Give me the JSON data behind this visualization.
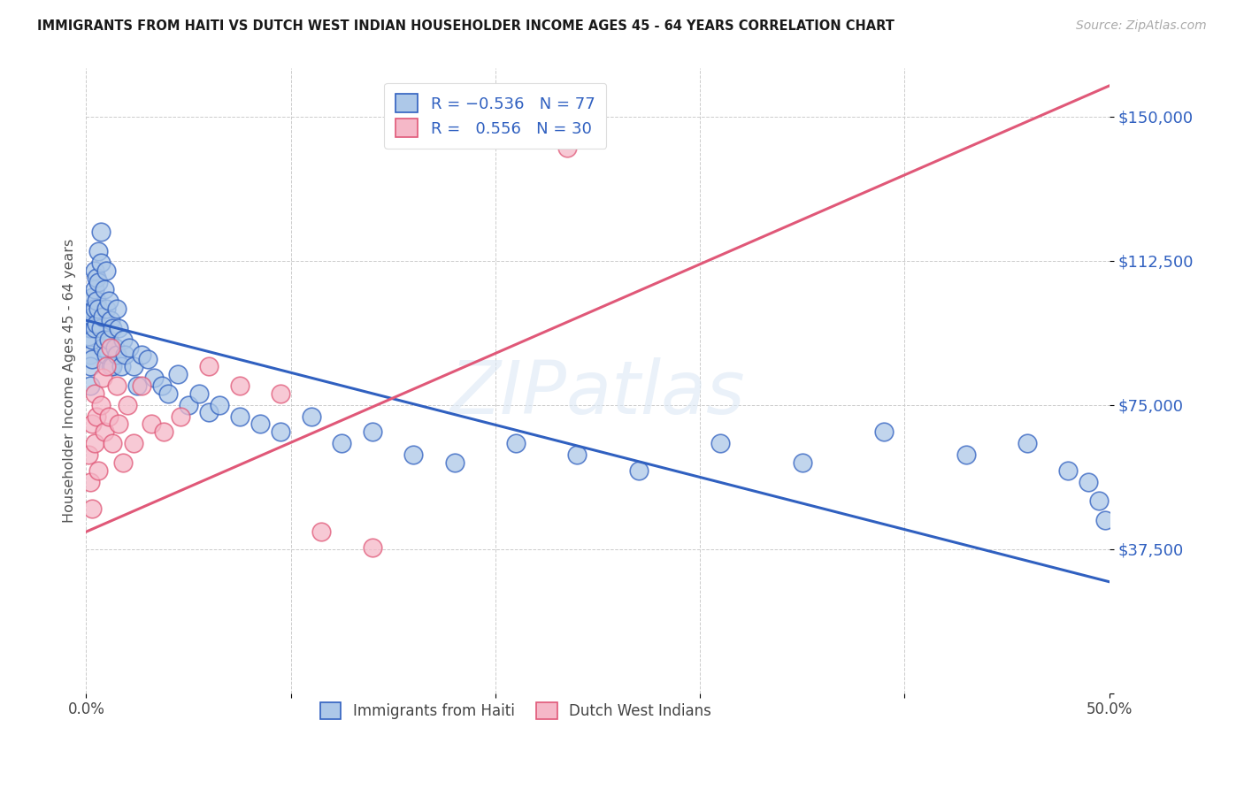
{
  "title": "IMMIGRANTS FROM HAITI VS DUTCH WEST INDIAN HOUSEHOLDER INCOME AGES 45 - 64 YEARS CORRELATION CHART",
  "source": "Source: ZipAtlas.com",
  "ylabel": "Householder Income Ages 45 - 64 years",
  "xlim": [
    0.0,
    0.5
  ],
  "ylim": [
    0,
    162500
  ],
  "yticks": [
    0,
    37500,
    75000,
    112500,
    150000
  ],
  "ytick_labels": [
    "",
    "$37,500",
    "$75,000",
    "$112,500",
    "$150,000"
  ],
  "xticks": [
    0.0,
    0.1,
    0.2,
    0.3,
    0.4,
    0.5
  ],
  "xtick_labels": [
    "0.0%",
    "",
    "",
    "",
    "",
    "50.0%"
  ],
  "haiti_color": "#adc8e8",
  "dwi_color": "#f5b8c8",
  "haiti_line_color": "#3060c0",
  "dwi_line_color": "#e05878",
  "background_color": "#ffffff",
  "watermark": "ZIPatlas",
  "haiti_x": [
    0.001,
    0.001,
    0.002,
    0.002,
    0.002,
    0.002,
    0.002,
    0.003,
    0.003,
    0.003,
    0.003,
    0.004,
    0.004,
    0.004,
    0.004,
    0.005,
    0.005,
    0.005,
    0.006,
    0.006,
    0.006,
    0.007,
    0.007,
    0.007,
    0.008,
    0.008,
    0.009,
    0.009,
    0.01,
    0.01,
    0.01,
    0.011,
    0.011,
    0.012,
    0.012,
    0.013,
    0.013,
    0.014,
    0.015,
    0.015,
    0.016,
    0.017,
    0.018,
    0.019,
    0.021,
    0.023,
    0.025,
    0.027,
    0.03,
    0.033,
    0.037,
    0.04,
    0.045,
    0.05,
    0.055,
    0.06,
    0.065,
    0.075,
    0.085,
    0.095,
    0.11,
    0.125,
    0.14,
    0.16,
    0.18,
    0.21,
    0.24,
    0.27,
    0.31,
    0.35,
    0.39,
    0.43,
    0.46,
    0.48,
    0.49,
    0.495,
    0.498
  ],
  "haiti_y": [
    97000,
    93000,
    100000,
    95000,
    88000,
    85000,
    80000,
    103000,
    98000,
    92000,
    87000,
    110000,
    105000,
    100000,
    95000,
    108000,
    102000,
    96000,
    115000,
    107000,
    100000,
    120000,
    112000,
    95000,
    98000,
    90000,
    105000,
    92000,
    110000,
    100000,
    88000,
    102000,
    92000,
    97000,
    85000,
    95000,
    85000,
    90000,
    100000,
    88000,
    95000,
    85000,
    92000,
    88000,
    90000,
    85000,
    80000,
    88000,
    87000,
    82000,
    80000,
    78000,
    83000,
    75000,
    78000,
    73000,
    75000,
    72000,
    70000,
    68000,
    72000,
    65000,
    68000,
    62000,
    60000,
    65000,
    62000,
    58000,
    65000,
    60000,
    68000,
    62000,
    65000,
    58000,
    55000,
    50000,
    45000
  ],
  "dwi_x": [
    0.001,
    0.002,
    0.003,
    0.003,
    0.004,
    0.004,
    0.005,
    0.006,
    0.007,
    0.008,
    0.009,
    0.01,
    0.011,
    0.012,
    0.013,
    0.015,
    0.016,
    0.018,
    0.02,
    0.023,
    0.027,
    0.032,
    0.038,
    0.046,
    0.06,
    0.075,
    0.095,
    0.115,
    0.14,
    0.235
  ],
  "dwi_y": [
    62000,
    55000,
    70000,
    48000,
    65000,
    78000,
    72000,
    58000,
    75000,
    82000,
    68000,
    85000,
    72000,
    90000,
    65000,
    80000,
    70000,
    60000,
    75000,
    65000,
    80000,
    70000,
    68000,
    72000,
    85000,
    80000,
    78000,
    42000,
    38000,
    142000
  ],
  "haiti_line_x0": 0.0,
  "haiti_line_x1": 0.5,
  "haiti_line_y0": 97000,
  "haiti_line_y1": 29000,
  "dwi_line_x0": 0.0,
  "dwi_line_x1": 0.5,
  "dwi_line_y0": 42000,
  "dwi_line_y1": 158000
}
